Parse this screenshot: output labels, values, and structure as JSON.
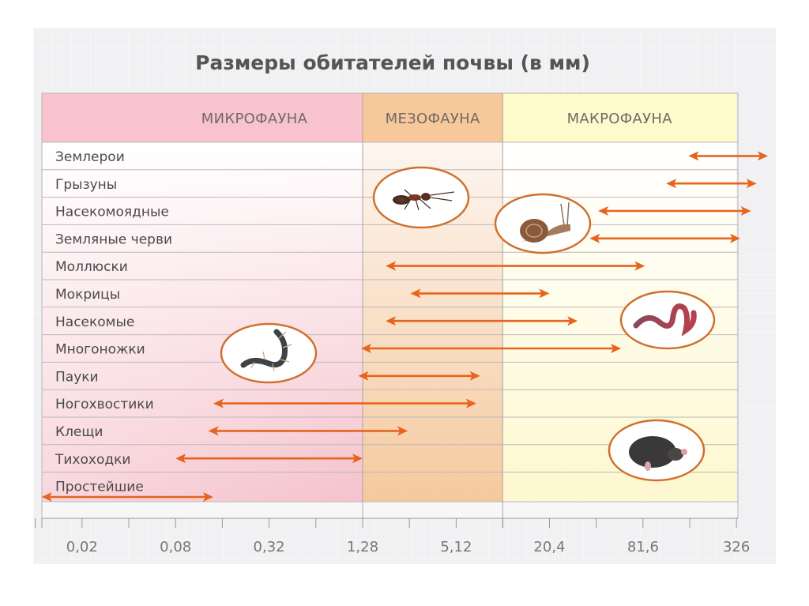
{
  "chart_data": {
    "type": "range-bar",
    "title": "Размеры обитателей почвы (в мм)",
    "scale": "log",
    "xlabel": "",
    "ylabel": "",
    "xlim": [
      0.0085,
      520
    ],
    "grid": true,
    "x_ticks": [
      0.02,
      0.08,
      0.32,
      1.28,
      5.12,
      20.4,
      81.6,
      326
    ],
    "x_tick_labels": [
      "0,02",
      "0,08",
      "0,32",
      "1,28",
      "5,12",
      "20,4",
      "81,6",
      "326"
    ],
    "zones": [
      {
        "name": "МИКРОФАУНА",
        "from": 0.0085,
        "to": 1.28,
        "color": "#f8c3cc"
      },
      {
        "name": "МЕЗОФАУНА",
        "from": 1.28,
        "to": 10.2,
        "color": "#f7c89a"
      },
      {
        "name": "МАКРОФАУНА",
        "from": 10.2,
        "to": 326,
        "color": "#fdfbcb"
      }
    ],
    "categories": [
      "Землерои",
      "Грызуны",
      "Насекомоядные",
      "Земляные черви",
      "Моллюски",
      "Мокрицы",
      "Насекомые",
      "Многоножки",
      "Пауки",
      "Ногохвостики",
      "Клещи",
      "Тихоходки",
      "Простейшие"
    ],
    "ranges": [
      [
        160,
        520
      ],
      [
        115,
        440
      ],
      [
        42,
        405
      ],
      [
        37,
        345
      ],
      [
        1.8,
        84
      ],
      [
        2.6,
        20.4
      ],
      [
        1.8,
        31
      ],
      [
        1.25,
        59
      ],
      [
        1.2,
        7.3
      ],
      [
        0.14,
        6.9
      ],
      [
        0.13,
        2.5
      ],
      [
        0.08,
        1.28
      ],
      [
        0.011,
        0.14
      ]
    ],
    "arrow_color": "#e8631c",
    "illustrations": [
      {
        "name": "муравей",
        "icon": "ant-icon"
      },
      {
        "name": "улитка",
        "icon": "snail-icon"
      },
      {
        "name": "червь",
        "icon": "worm-icon"
      },
      {
        "name": "многоножка",
        "icon": "millipede-icon"
      },
      {
        "name": "крот",
        "icon": "mole-icon"
      }
    ]
  }
}
